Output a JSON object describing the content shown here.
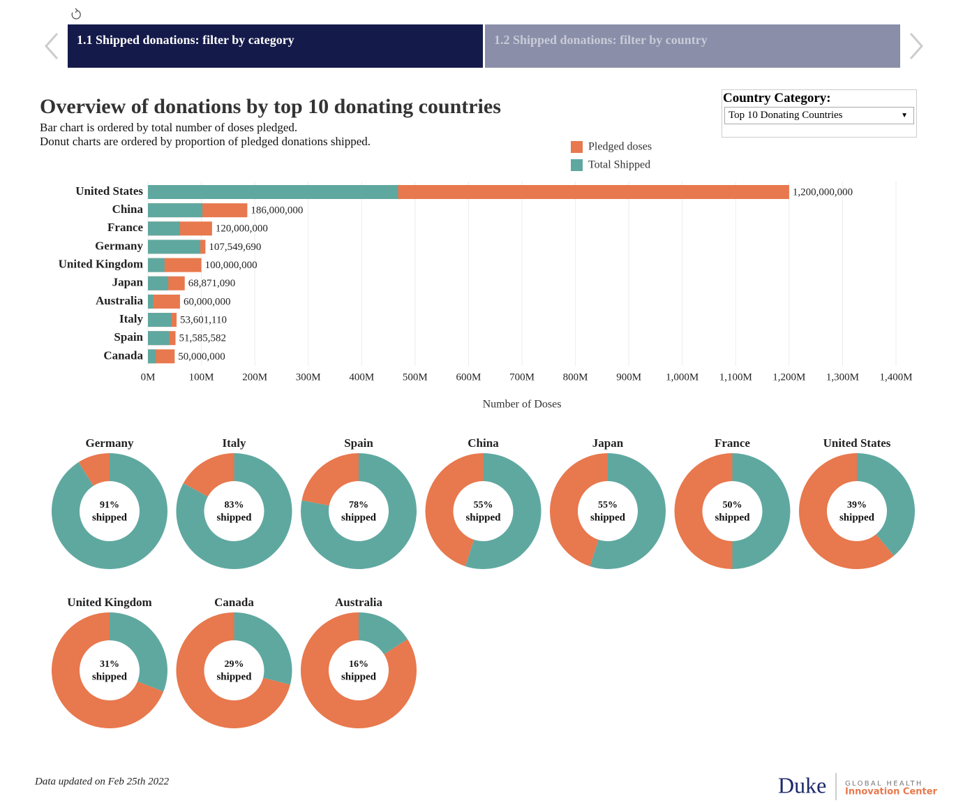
{
  "toolbar": {
    "tabs": [
      "1.1 Shipped donations: filter by category",
      "1.2 Shipped donations: filter by country"
    ]
  },
  "header": {
    "title": "Overview of donations by top 10 donating countries",
    "subtitle": [
      "Bar chart is ordered by total number of doses pledged.",
      "Donut charts are ordered by proportion of pledged donations shipped."
    ]
  },
  "filter": {
    "label": "Country Category:",
    "selected": "Top 10 Donating Countries"
  },
  "chart_data": [
    {
      "type": "bar",
      "orientation": "horizontal",
      "overlay": true,
      "grid": true,
      "categories": [
        "United States",
        "China",
        "France",
        "Germany",
        "United Kingdom",
        "Japan",
        "Australia",
        "Italy",
        "Spain",
        "Canada"
      ],
      "series": [
        {
          "name": "Pledged doses",
          "color": "#e8784d",
          "values": [
            1200000000,
            186000000,
            120000000,
            107549690,
            100000000,
            68871090,
            60000000,
            53601110,
            51585582,
            50000000
          ],
          "value_labels": [
            "1,200,000,000",
            "186,000,000",
            "120,000,000",
            "107,549,690",
            "100,000,000",
            "68,871,090",
            "60,000,000",
            "53,601,110",
            "51,585,582",
            "50,000,000"
          ]
        },
        {
          "name": "Total Shipped",
          "color": "#5fa8a0",
          "values": [
            468000000,
            102000000,
            60000000,
            98000000,
            31000000,
            38000000,
            10000000,
            44000000,
            40000000,
            15000000
          ]
        }
      ],
      "xlim": [
        0,
        1400000000
      ],
      "xticks": [
        {
          "value": 0,
          "label": "0M"
        },
        {
          "value": 100000000,
          "label": "100M"
        },
        {
          "value": 200000000,
          "label": "200M"
        },
        {
          "value": 300000000,
          "label": "300M"
        },
        {
          "value": 400000000,
          "label": "400M"
        },
        {
          "value": 500000000,
          "label": "500M"
        },
        {
          "value": 600000000,
          "label": "600M"
        },
        {
          "value": 700000000,
          "label": "700M"
        },
        {
          "value": 800000000,
          "label": "800M"
        },
        {
          "value": 900000000,
          "label": "900M"
        },
        {
          "value": 1000000000,
          "label": "1,000M"
        },
        {
          "value": 1100000000,
          "label": "1,100M"
        },
        {
          "value": 1200000000,
          "label": "1,200M"
        },
        {
          "value": 1300000000,
          "label": "1,300M"
        },
        {
          "value": 1400000000,
          "label": "1,400M"
        }
      ],
      "x_label": "Number of Doses"
    },
    {
      "type": "donut",
      "title": "Germany",
      "values": [
        91,
        9
      ],
      "center_label": "91%",
      "center_caption": "shipped",
      "colors": [
        "#5fa8a0",
        "#e8784d"
      ]
    },
    {
      "type": "donut",
      "title": "Italy",
      "values": [
        83,
        17
      ],
      "center_label": "83%",
      "center_caption": "shipped",
      "colors": [
        "#5fa8a0",
        "#e8784d"
      ]
    },
    {
      "type": "donut",
      "title": "Spain",
      "values": [
        78,
        22
      ],
      "center_label": "78%",
      "center_caption": "shipped",
      "colors": [
        "#5fa8a0",
        "#e8784d"
      ]
    },
    {
      "type": "donut",
      "title": "China",
      "values": [
        55,
        45
      ],
      "center_label": "55%",
      "center_caption": "shipped",
      "colors": [
        "#5fa8a0",
        "#e8784d"
      ]
    },
    {
      "type": "donut",
      "title": "Japan",
      "values": [
        55,
        45
      ],
      "center_label": "55%",
      "center_caption": "shipped",
      "colors": [
        "#5fa8a0",
        "#e8784d"
      ]
    },
    {
      "type": "donut",
      "title": "France",
      "values": [
        50,
        50
      ],
      "center_label": "50%",
      "center_caption": "shipped",
      "colors": [
        "#5fa8a0",
        "#e8784d"
      ]
    },
    {
      "type": "donut",
      "title": "United States",
      "values": [
        39,
        61
      ],
      "center_label": "39%",
      "center_caption": "shipped",
      "colors": [
        "#5fa8a0",
        "#e8784d"
      ]
    },
    {
      "type": "donut",
      "title": "United Kingdom",
      "values": [
        31,
        69
      ],
      "center_label": "31%",
      "center_caption": "shipped",
      "colors": [
        "#5fa8a0",
        "#e8784d"
      ]
    },
    {
      "type": "donut",
      "title": "Canada",
      "values": [
        29,
        71
      ],
      "center_label": "29%",
      "center_caption": "shipped",
      "colors": [
        "#5fa8a0",
        "#e8784d"
      ]
    },
    {
      "type": "donut",
      "title": "Australia",
      "values": [
        16,
        84
      ],
      "center_label": "16%",
      "center_caption": "shipped",
      "colors": [
        "#5fa8a0",
        "#e8784d"
      ]
    }
  ],
  "footer": {
    "note": "Data updated on Feb 25th 2022",
    "logo": {
      "name": "Duke",
      "line1": "GLOBAL HEALTH",
      "line2": "Innovation Center"
    }
  }
}
